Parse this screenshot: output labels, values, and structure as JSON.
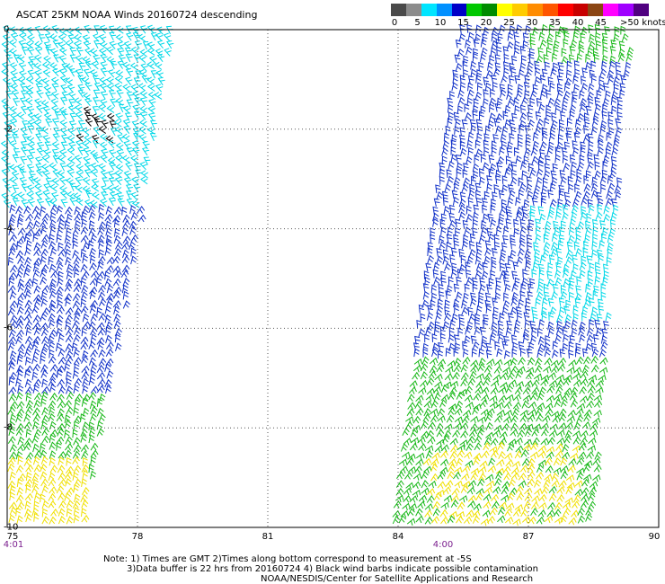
{
  "header": {
    "title": "ASCAT 25KM NOAA Winds 20160724 descending"
  },
  "legend": {
    "ticks": [
      "0",
      "5",
      "10",
      "15",
      "20",
      "25",
      "30",
      "35",
      "40",
      "45"
    ],
    "units": ">50 knots",
    "colors": [
      "#4a4a4a",
      "#8c8c8c",
      "#00e5ff",
      "#0090ff",
      "#0000c8",
      "#00c800",
      "#008c00",
      "#ffff00",
      "#ffcc00",
      "#ff8c00",
      "#ff5500",
      "#ff0000",
      "#c80000",
      "#8b4513",
      "#ff00ff",
      "#a000ff",
      "#500080"
    ]
  },
  "axes": {
    "x_ticks": [
      "75",
      "78",
      "81",
      "84",
      "87",
      "90"
    ],
    "y_ticks": [
      "0",
      "-2",
      "-4",
      "-6",
      "-8",
      "-10"
    ],
    "xlim": [
      75,
      90
    ],
    "ylim": [
      -10,
      0
    ]
  },
  "swaths": {
    "west_time": "4:01",
    "east_time": "4:00"
  },
  "notes": {
    "line1": "Note: 1) Times are GMT 2)Times along bottom correspond to measurement at -5S",
    "line2": "3)Data buffer is 22 hrs from 20160724 4) Black wind barbs indicate possible contamination",
    "line3": "NOAA/NESDIS/Center for Satellite Applications and Research"
  },
  "colors": {
    "cyan": "#00d8e8",
    "blue": "#1030c8",
    "green": "#18b818",
    "yellow": "#f0e000",
    "contamination": "#000000",
    "grid": "#555555"
  }
}
